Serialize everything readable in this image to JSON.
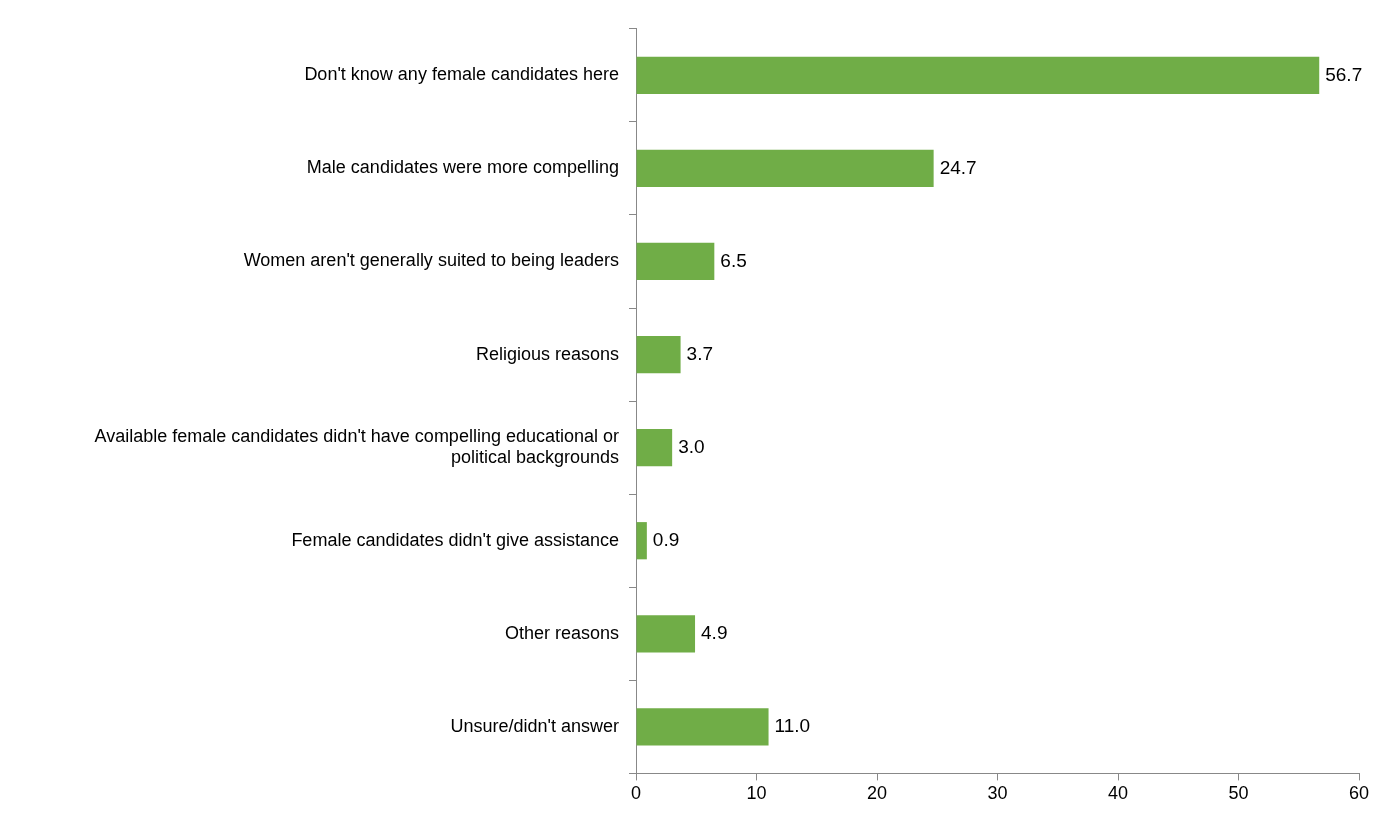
{
  "chart_data": {
    "type": "bar",
    "orientation": "horizontal",
    "categories": [
      "Don't know any female candidates here",
      "Male candidates were more compelling",
      "Women aren't generally suited to being leaders",
      "Religious reasons",
      "Available female candidates didn't have compelling educational or political backgrounds",
      "Female candidates didn't give assistance",
      "Other reasons",
      "Unsure/didn't answer"
    ],
    "values": [
      56.7,
      24.7,
      6.5,
      3.7,
      3.0,
      0.9,
      4.9,
      11.0
    ],
    "value_labels": [
      "56.7",
      "24.7",
      "6.5",
      "3.7",
      "3.0",
      "0.9",
      "4.9",
      "11.0"
    ],
    "color": "#70ad47",
    "xlim": [
      0,
      60
    ],
    "xticks": [
      0,
      10,
      20,
      30,
      40,
      50,
      60
    ],
    "grid": false,
    "legend": false
  }
}
